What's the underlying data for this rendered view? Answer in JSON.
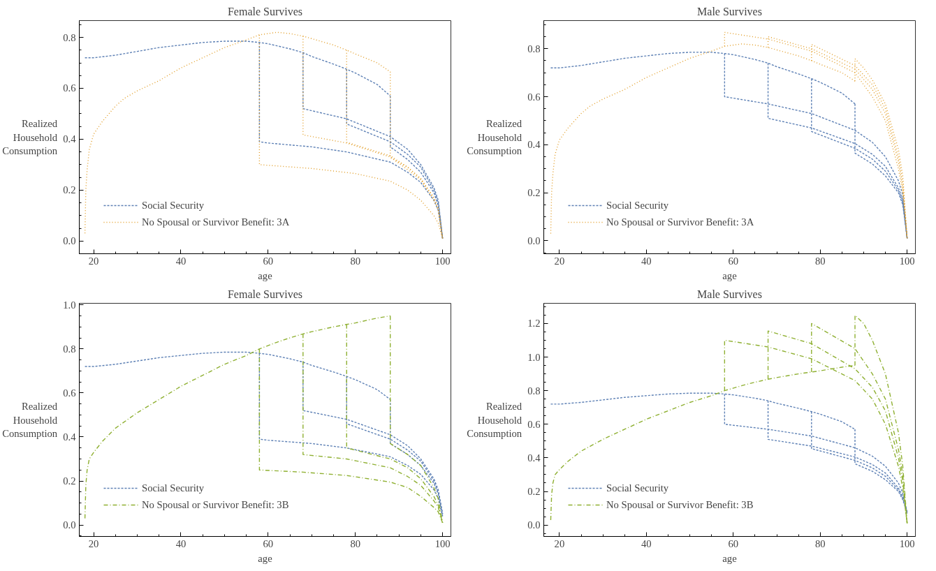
{
  "chart_data": [
    {
      "type": "line",
      "title": "Female Survives",
      "xlabel": "age",
      "ylabel": "Realized Household Consumption",
      "xlim": [
        16.7,
        101.9
      ],
      "xticks": [
        20,
        40,
        60,
        80,
        100
      ],
      "ylim": [
        -0.05,
        0.866
      ],
      "yticks": [
        {
          "value": 0,
          "label": "0.0"
        },
        {
          "value": 0.2,
          "label": "0.2"
        },
        {
          "value": 0.4,
          "label": "0.4"
        },
        {
          "value": 0.6,
          "label": "0.6"
        },
        {
          "value": 0.8,
          "label": "0.8"
        }
      ],
      "grid": false,
      "legend": "bottom left",
      "series": [
        {
          "name": "Social Security",
          "color": "#5e81b5",
          "line_style": "dashed",
          "x": [
            18,
            20,
            25,
            30,
            35,
            40,
            45,
            50,
            55,
            58,
            60,
            65,
            68,
            70,
            75,
            78,
            80,
            85,
            88
          ],
          "values": [
            0.72,
            0.72,
            0.73,
            0.745,
            0.76,
            0.77,
            0.78,
            0.785,
            0.785,
            0.78,
            0.775,
            0.755,
            0.74,
            0.725,
            0.695,
            0.675,
            0.66,
            0.615,
            0.57
          ]
        },
        {
          "color": "#5e81b5",
          "line_style": "dashed",
          "x": [
            58,
            58,
            60,
            70,
            78,
            88,
            92,
            95,
            98,
            99,
            100
          ],
          "values": [
            0.78,
            0.39,
            0.385,
            0.37,
            0.35,
            0.31,
            0.27,
            0.23,
            0.16,
            0.12,
            0.01
          ]
        },
        {
          "color": "#5e81b5",
          "line_style": "dashed",
          "x": [
            68,
            68,
            78,
            88,
            92,
            95,
            98,
            99,
            100
          ],
          "values": [
            0.74,
            0.52,
            0.48,
            0.41,
            0.36,
            0.3,
            0.21,
            0.16,
            0.01
          ]
        },
        {
          "color": "#5e81b5",
          "line_style": "dashed",
          "x": [
            78,
            78,
            88,
            92,
            95,
            98,
            99,
            100
          ],
          "values": [
            0.675,
            0.46,
            0.39,
            0.34,
            0.29,
            0.2,
            0.15,
            0.01
          ]
        },
        {
          "color": "#5e81b5",
          "line_style": "dashed",
          "x": [
            88,
            88,
            92,
            95,
            98,
            99,
            100
          ],
          "values": [
            0.57,
            0.37,
            0.32,
            0.27,
            0.19,
            0.14,
            0.01
          ]
        },
        {
          "name": "No Spousal or Survivor Benefit: 3A",
          "color": "#e19c24",
          "line_style": "dotted",
          "x": [
            18,
            18.2,
            18.5,
            19,
            20,
            22,
            25,
            27,
            30,
            35,
            40,
            45,
            50,
            55,
            58,
            62,
            65,
            68,
            70,
            75,
            78,
            80,
            85,
            88
          ],
          "values": [
            0.03,
            0.2,
            0.28,
            0.36,
            0.42,
            0.47,
            0.53,
            0.56,
            0.59,
            0.63,
            0.68,
            0.72,
            0.76,
            0.79,
            0.81,
            0.82,
            0.815,
            0.805,
            0.795,
            0.77,
            0.75,
            0.735,
            0.7,
            0.665
          ]
        },
        {
          "color": "#e19c24",
          "line_style": "dotted",
          "x": [
            58,
            58,
            70,
            80,
            88,
            92,
            95,
            98,
            99,
            100
          ],
          "values": [
            0.81,
            0.3,
            0.285,
            0.265,
            0.235,
            0.2,
            0.16,
            0.1,
            0.07,
            0.01
          ]
        },
        {
          "color": "#e19c24",
          "line_style": "dotted",
          "x": [
            68,
            68,
            78,
            88,
            92,
            95,
            98,
            99,
            100
          ],
          "values": [
            0.805,
            0.417,
            0.385,
            0.33,
            0.28,
            0.24,
            0.16,
            0.12,
            0.01
          ]
        },
        {
          "color": "#e19c24",
          "line_style": "dotted",
          "x": [
            78,
            78,
            88,
            92,
            95,
            98,
            99,
            100
          ],
          "values": [
            0.75,
            0.388,
            0.335,
            0.29,
            0.245,
            0.17,
            0.13,
            0.01
          ]
        },
        {
          "color": "#e19c24",
          "line_style": "dotted",
          "x": [
            88,
            88,
            92,
            95,
            98,
            99,
            100
          ],
          "values": [
            0.665,
            0.328,
            0.29,
            0.245,
            0.17,
            0.13,
            0.01
          ]
        }
      ]
    },
    {
      "type": "line",
      "title": "Male Survives",
      "xlabel": "age",
      "ylabel": "Realized Household Consumption",
      "xlim": [
        16.4,
        101.9
      ],
      "xticks": [
        20,
        40,
        60,
        80,
        100
      ],
      "ylim": [
        -0.054,
        0.917
      ],
      "yticks": [
        {
          "value": 0,
          "label": "0.0"
        },
        {
          "value": 0.2,
          "label": "0.2"
        },
        {
          "value": 0.4,
          "label": "0.4"
        },
        {
          "value": 0.6,
          "label": "0.6"
        },
        {
          "value": 0.8,
          "label": "0.8"
        }
      ],
      "grid": false,
      "legend": "bottom left",
      "series": [
        {
          "name": "Social Security",
          "color": "#5e81b5",
          "line_style": "dashed",
          "x": [
            18,
            20,
            25,
            30,
            35,
            40,
            45,
            50,
            55,
            58,
            60,
            65,
            68,
            70,
            75,
            78,
            80,
            85,
            88
          ],
          "values": [
            0.72,
            0.72,
            0.73,
            0.745,
            0.76,
            0.77,
            0.78,
            0.785,
            0.785,
            0.78,
            0.775,
            0.755,
            0.74,
            0.725,
            0.695,
            0.675,
            0.66,
            0.615,
            0.57
          ]
        },
        {
          "color": "#5e81b5",
          "line_style": "dashed",
          "x": [
            58,
            58,
            68,
            78,
            88,
            92,
            95,
            98,
            99,
            100
          ],
          "values": [
            0.78,
            0.6,
            0.57,
            0.53,
            0.46,
            0.41,
            0.35,
            0.25,
            0.19,
            0.01
          ]
        },
        {
          "color": "#5e81b5",
          "line_style": "dashed",
          "x": [
            68,
            68,
            78,
            88,
            92,
            95,
            98,
            99,
            100
          ],
          "values": [
            0.74,
            0.51,
            0.47,
            0.405,
            0.36,
            0.31,
            0.22,
            0.17,
            0.01
          ]
        },
        {
          "color": "#5e81b5",
          "line_style": "dashed",
          "x": [
            78,
            78,
            88,
            92,
            95,
            98,
            99,
            100
          ],
          "values": [
            0.675,
            0.455,
            0.385,
            0.34,
            0.29,
            0.21,
            0.16,
            0.01
          ]
        },
        {
          "color": "#5e81b5",
          "line_style": "dashed",
          "x": [
            88,
            88,
            92,
            95,
            98,
            99,
            100
          ],
          "values": [
            0.57,
            0.365,
            0.32,
            0.27,
            0.2,
            0.15,
            0.01
          ]
        },
        {
          "name": "No Spousal or Survivor Benefit: 3A",
          "color": "#e19c24",
          "line_style": "dotted",
          "x": [
            18,
            18.2,
            18.5,
            19,
            20,
            22,
            25,
            27,
            30,
            35,
            40,
            45,
            50,
            55,
            58,
            62,
            65,
            68,
            70,
            75,
            78,
            80,
            85,
            88
          ],
          "values": [
            0.03,
            0.2,
            0.28,
            0.36,
            0.42,
            0.47,
            0.53,
            0.56,
            0.59,
            0.63,
            0.68,
            0.72,
            0.76,
            0.79,
            0.81,
            0.82,
            0.815,
            0.805,
            0.795,
            0.77,
            0.75,
            0.735,
            0.7,
            0.665
          ]
        },
        {
          "color": "#e19c24",
          "line_style": "dotted",
          "x": [
            58,
            58,
            68,
            78,
            88,
            92,
            95,
            98,
            99,
            100
          ],
          "values": [
            0.81,
            0.868,
            0.84,
            0.79,
            0.7,
            0.6,
            0.5,
            0.3,
            0.2,
            0.01
          ]
        },
        {
          "color": "#e19c24",
          "line_style": "dotted",
          "x": [
            68,
            68,
            78,
            88,
            92,
            95,
            98,
            99,
            100
          ],
          "values": [
            0.805,
            0.85,
            0.8,
            0.715,
            0.63,
            0.53,
            0.33,
            0.22,
            0.01
          ]
        },
        {
          "color": "#e19c24",
          "line_style": "dotted",
          "x": [
            78,
            78,
            88,
            92,
            95,
            98,
            99,
            100
          ],
          "values": [
            0.75,
            0.818,
            0.73,
            0.65,
            0.55,
            0.35,
            0.24,
            0.01
          ]
        },
        {
          "color": "#e19c24",
          "line_style": "dotted",
          "x": [
            88,
            88,
            90,
            92,
            95,
            98,
            99,
            100
          ],
          "values": [
            0.665,
            0.758,
            0.72,
            0.67,
            0.57,
            0.38,
            0.27,
            0.01
          ]
        }
      ]
    },
    {
      "type": "line",
      "title": "Female Survives",
      "xlabel": "age",
      "ylabel": "Realized Household Consumption",
      "xlim": [
        16.7,
        101.9
      ],
      "xticks": [
        20,
        40,
        60,
        80,
        100
      ],
      "ylim": [
        -0.052,
        1.007
      ],
      "yticks": [
        {
          "value": 0,
          "label": "0.0"
        },
        {
          "value": 0.2,
          "label": "0.2"
        },
        {
          "value": 0.4,
          "label": "0.4"
        },
        {
          "value": 0.6,
          "label": "0.6"
        },
        {
          "value": 0.8,
          "label": "0.8"
        },
        {
          "value": 1,
          "label": "1.0"
        }
      ],
      "grid": false,
      "legend": "bottom left",
      "series": [
        {
          "name": "Social Security",
          "color": "#5e81b5",
          "line_style": "dashed",
          "x": [
            18,
            20,
            25,
            30,
            35,
            40,
            45,
            50,
            55,
            58,
            60,
            65,
            68,
            70,
            75,
            78,
            80,
            85,
            88
          ],
          "values": [
            0.72,
            0.72,
            0.73,
            0.745,
            0.76,
            0.77,
            0.78,
            0.785,
            0.785,
            0.78,
            0.775,
            0.755,
            0.74,
            0.725,
            0.695,
            0.675,
            0.66,
            0.615,
            0.57
          ]
        },
        {
          "color": "#5e81b5",
          "line_style": "dashed",
          "x": [
            58,
            58,
            60,
            70,
            78,
            88,
            92,
            95,
            98,
            99,
            100
          ],
          "values": [
            0.78,
            0.39,
            0.385,
            0.37,
            0.35,
            0.31,
            0.27,
            0.23,
            0.16,
            0.12,
            0.04
          ]
        },
        {
          "color": "#5e81b5",
          "line_style": "dashed",
          "x": [
            68,
            68,
            78,
            88,
            92,
            95,
            98,
            99,
            100
          ],
          "values": [
            0.74,
            0.52,
            0.48,
            0.41,
            0.36,
            0.3,
            0.21,
            0.16,
            0.05
          ]
        },
        {
          "color": "#5e81b5",
          "line_style": "dashed",
          "x": [
            78,
            78,
            88,
            92,
            95,
            98,
            99,
            100
          ],
          "values": [
            0.675,
            0.46,
            0.39,
            0.34,
            0.29,
            0.2,
            0.15,
            0.05
          ]
        },
        {
          "color": "#5e81b5",
          "line_style": "dashed",
          "x": [
            88,
            88,
            92,
            95,
            98,
            99,
            100
          ],
          "values": [
            0.57,
            0.37,
            0.32,
            0.27,
            0.19,
            0.14,
            0.04
          ]
        },
        {
          "name": "No Spousal or Survivor Benefit: 3B",
          "color": "#8fb032",
          "line_style": "dashdot",
          "x": [
            18,
            18.2,
            18.5,
            19,
            20,
            22,
            25,
            30,
            35,
            40,
            45,
            50,
            55,
            58,
            62,
            65,
            68,
            70,
            75,
            78,
            80,
            85,
            88
          ],
          "values": [
            0.03,
            0.18,
            0.25,
            0.3,
            0.33,
            0.38,
            0.44,
            0.51,
            0.57,
            0.63,
            0.68,
            0.73,
            0.77,
            0.8,
            0.83,
            0.85,
            0.868,
            0.878,
            0.9,
            0.911,
            0.918,
            0.94,
            0.95
          ]
        },
        {
          "color": "#8fb032",
          "line_style": "dashdot",
          "x": [
            58,
            58,
            68,
            78,
            88,
            92,
            95,
            98,
            99,
            100
          ],
          "values": [
            0.8,
            0.25,
            0.24,
            0.225,
            0.195,
            0.17,
            0.13,
            0.08,
            0.06,
            0.01
          ]
        },
        {
          "color": "#8fb032",
          "line_style": "dashdot",
          "x": [
            68,
            68,
            78,
            88,
            92,
            95,
            98,
            99,
            100
          ],
          "values": [
            0.868,
            0.32,
            0.3,
            0.26,
            0.22,
            0.18,
            0.11,
            0.08,
            0.01
          ]
        },
        {
          "color": "#8fb032",
          "line_style": "dashdot",
          "x": [
            78,
            78,
            88,
            92,
            95,
            98,
            99,
            100
          ],
          "values": [
            0.911,
            0.35,
            0.3,
            0.26,
            0.21,
            0.13,
            0.09,
            0.01
          ]
        },
        {
          "color": "#8fb032",
          "line_style": "dashdot",
          "x": [
            88,
            88,
            92,
            95,
            98,
            99,
            100
          ],
          "values": [
            0.95,
            0.37,
            0.32,
            0.27,
            0.17,
            0.12,
            0.01
          ]
        }
      ]
    },
    {
      "type": "line",
      "title": "Male Survives",
      "xlabel": "age",
      "ylabel": "Realized Household Consumption",
      "xlim": [
        16.4,
        101.9
      ],
      "xticks": [
        20,
        40,
        60,
        80,
        100
      ],
      "ylim": [
        -0.068,
        1.32
      ],
      "yticks": [
        {
          "value": 0,
          "label": "0.0"
        },
        {
          "value": 0.2,
          "label": "0.2"
        },
        {
          "value": 0.4,
          "label": "0.4"
        },
        {
          "value": 0.6,
          "label": "0.6"
        },
        {
          "value": 0.8,
          "label": "0.8"
        },
        {
          "value": 1,
          "label": "1.0"
        },
        {
          "value": 1.2,
          "label": "1.2"
        }
      ],
      "grid": false,
      "legend": "bottom left",
      "series": [
        {
          "name": "Social Security",
          "color": "#5e81b5",
          "line_style": "dashed",
          "x": [
            18,
            20,
            25,
            30,
            35,
            40,
            45,
            50,
            55,
            58,
            60,
            65,
            68,
            70,
            75,
            78,
            80,
            85,
            88
          ],
          "values": [
            0.72,
            0.72,
            0.73,
            0.745,
            0.76,
            0.77,
            0.78,
            0.785,
            0.785,
            0.78,
            0.775,
            0.755,
            0.74,
            0.725,
            0.695,
            0.675,
            0.66,
            0.615,
            0.57
          ]
        },
        {
          "color": "#5e81b5",
          "line_style": "dashed",
          "x": [
            58,
            58,
            68,
            78,
            88,
            92,
            95,
            98,
            99,
            100
          ],
          "values": [
            0.78,
            0.6,
            0.57,
            0.53,
            0.46,
            0.41,
            0.35,
            0.25,
            0.19,
            0.07
          ]
        },
        {
          "color": "#5e81b5",
          "line_style": "dashed",
          "x": [
            68,
            68,
            78,
            88,
            92,
            95,
            98,
            99,
            100
          ],
          "values": [
            0.74,
            0.51,
            0.47,
            0.405,
            0.36,
            0.31,
            0.22,
            0.17,
            0.08
          ]
        },
        {
          "color": "#5e81b5",
          "line_style": "dashed",
          "x": [
            78,
            78,
            88,
            92,
            95,
            98,
            99,
            100
          ],
          "values": [
            0.675,
            0.455,
            0.385,
            0.34,
            0.29,
            0.21,
            0.16,
            0.08
          ]
        },
        {
          "color": "#5e81b5",
          "line_style": "dashed",
          "x": [
            88,
            88,
            92,
            95,
            98,
            99,
            100
          ],
          "values": [
            0.57,
            0.365,
            0.32,
            0.27,
            0.2,
            0.15,
            0.07
          ]
        },
        {
          "name": "No Spousal or Survivor Benefit: 3B",
          "color": "#8fb032",
          "line_style": "dashdot",
          "x": [
            18,
            18.2,
            18.5,
            19,
            20,
            22,
            25,
            30,
            35,
            40,
            45,
            50,
            55,
            58,
            62,
            65,
            68,
            70,
            75,
            78,
            80,
            85,
            88
          ],
          "values": [
            0.03,
            0.18,
            0.25,
            0.3,
            0.33,
            0.38,
            0.44,
            0.51,
            0.57,
            0.63,
            0.68,
            0.73,
            0.77,
            0.8,
            0.83,
            0.85,
            0.868,
            0.878,
            0.9,
            0.911,
            0.918,
            0.94,
            0.95
          ]
        },
        {
          "color": "#8fb032",
          "line_style": "dashdot",
          "x": [
            58,
            58,
            68,
            78,
            88,
            92,
            95,
            98,
            99,
            100
          ],
          "values": [
            0.8,
            1.1,
            1.06,
            0.99,
            0.86,
            0.75,
            0.6,
            0.35,
            0.22,
            0.01
          ]
        },
        {
          "color": "#8fb032",
          "line_style": "dashdot",
          "x": [
            68,
            68,
            78,
            88,
            92,
            95,
            98,
            99,
            100
          ],
          "values": [
            0.868,
            1.155,
            1.08,
            0.93,
            0.82,
            0.68,
            0.4,
            0.26,
            0.01
          ]
        },
        {
          "color": "#8fb032",
          "line_style": "dashdot",
          "x": [
            78,
            78,
            88,
            92,
            95,
            98,
            99,
            100
          ],
          "values": [
            0.911,
            1.2,
            1.05,
            0.9,
            0.75,
            0.45,
            0.3,
            0.01
          ]
        },
        {
          "color": "#8fb032",
          "line_style": "dashdot",
          "x": [
            88,
            88,
            90,
            92,
            95,
            98,
            99,
            100
          ],
          "values": [
            0.95,
            1.248,
            1.2,
            1.1,
            0.9,
            0.55,
            0.35,
            0.01
          ]
        }
      ]
    }
  ]
}
